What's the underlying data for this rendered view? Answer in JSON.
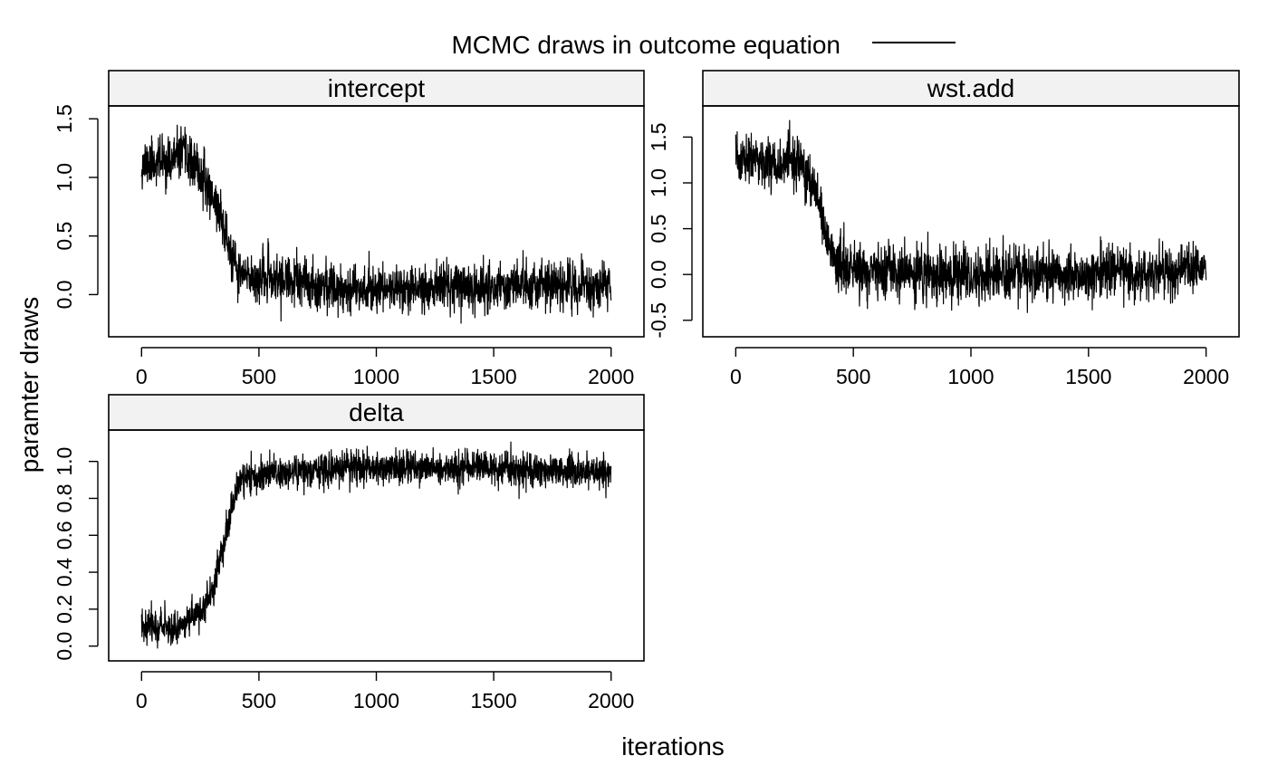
{
  "chart_data": {
    "type": "line",
    "title": "",
    "legend": {
      "label": "MCMC draws in outcome equation",
      "placement": "top-center",
      "line_color": "#000000"
    },
    "xlabel": "iterations",
    "ylabel": "paramter draws",
    "grid": false,
    "n_iterations": 2000,
    "colors": {
      "line": "#000000",
      "strip": "#f2f2f2",
      "frame": "#000000",
      "background": "#ffffff"
    },
    "panels": [
      {
        "name": "intercept",
        "xlim": [
          -140,
          2140
        ],
        "ylim": [
          -0.36,
          1.61
        ],
        "xticks": [
          0,
          500,
          1000,
          1500,
          2000
        ],
        "xtick_labels": [
          "0",
          "500",
          "1000",
          "1500",
          "2000"
        ],
        "yticks": [
          0.0,
          0.5,
          1.0,
          1.5
        ],
        "ytick_labels": [
          "0.0",
          "0.5",
          "1.0",
          "1.5"
        ],
        "trend": [
          [
            0,
            1.12
          ],
          [
            140,
            1.15
          ],
          [
            170,
            1.22
          ],
          [
            240,
            1.05
          ],
          [
            290,
            0.9
          ],
          [
            330,
            0.72
          ],
          [
            360,
            0.5
          ],
          [
            385,
            0.3
          ],
          [
            410,
            0.18
          ],
          [
            450,
            0.15
          ],
          [
            600,
            0.12
          ],
          [
            800,
            0.07
          ],
          [
            1000,
            0.05
          ],
          [
            1200,
            0.06
          ],
          [
            1400,
            0.07
          ],
          [
            1600,
            0.08
          ],
          [
            1800,
            0.07
          ],
          [
            2000,
            0.08
          ]
        ],
        "noise_sd": 0.1,
        "seed": 11
      },
      {
        "name": "wst.add",
        "xlim": [
          -140,
          2140
        ],
        "ylim": [
          -0.68,
          1.84
        ],
        "xticks": [
          0,
          500,
          1000,
          1500,
          2000
        ],
        "xtick_labels": [
          "0",
          "500",
          "1000",
          "1500",
          "2000"
        ],
        "yticks": [
          -0.5,
          0.0,
          0.5,
          1.0,
          1.5
        ],
        "ytick_labels": [
          "-0.5",
          "0.0",
          "0.5",
          "1.0",
          "1.5"
        ],
        "trend": [
          [
            0,
            1.25
          ],
          [
            250,
            1.22
          ],
          [
            300,
            1.1
          ],
          [
            340,
            0.85
          ],
          [
            370,
            0.55
          ],
          [
            400,
            0.3
          ],
          [
            430,
            0.15
          ],
          [
            480,
            0.05
          ],
          [
            600,
            0.02
          ],
          [
            800,
            0.0
          ],
          [
            1000,
            -0.02
          ],
          [
            1200,
            0.02
          ],
          [
            1400,
            -0.03
          ],
          [
            1600,
            0.0
          ],
          [
            1800,
            0.03
          ],
          [
            2000,
            0.05
          ]
        ],
        "noise_sd": 0.14,
        "seed": 23
      },
      {
        "name": "delta",
        "xlim": [
          -140,
          2140
        ],
        "ylim": [
          -0.08,
          1.17
        ],
        "xticks": [
          0,
          500,
          1000,
          1500,
          2000
        ],
        "xtick_labels": [
          "0",
          "500",
          "1000",
          "1500",
          "2000"
        ],
        "yticks": [
          0.0,
          0.2,
          0.4,
          0.6,
          0.8,
          1.0
        ],
        "ytick_labels": [
          "0.0",
          "0.2",
          "0.4",
          "0.6",
          "0.8",
          "1.0"
        ],
        "trend": [
          [
            0,
            0.12
          ],
          [
            150,
            0.1
          ],
          [
            200,
            0.14
          ],
          [
            260,
            0.2
          ],
          [
            300,
            0.3
          ],
          [
            330,
            0.45
          ],
          [
            360,
            0.6
          ],
          [
            390,
            0.78
          ],
          [
            420,
            0.9
          ],
          [
            500,
            0.93
          ],
          [
            800,
            0.96
          ],
          [
            1000,
            0.97
          ],
          [
            1200,
            0.96
          ],
          [
            1400,
            0.97
          ],
          [
            1600,
            0.95
          ],
          [
            1800,
            0.95
          ],
          [
            2000,
            0.93
          ]
        ],
        "noise_sd": 0.045,
        "seed": 37
      }
    ]
  }
}
